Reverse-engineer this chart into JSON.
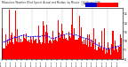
{
  "title": "Milwaukee Weather Wind Speed  Actual and Median  by Minute  (24 Hours) (Old)",
  "bar_color": "#ff0000",
  "line_color": "#0000ff",
  "background_color": "#ffffff",
  "plot_bg_color": "#ffffff",
  "ylim": [
    0,
    28
  ],
  "ytick_vals": [
    0,
    5,
    10,
    15,
    20,
    25
  ],
  "ytick_labels": [
    "0",
    "5",
    "10",
    "15",
    "20",
    "25"
  ],
  "n_points": 1440,
  "legend_actual_color": "#ff0000",
  "legend_median_color": "#0000cc",
  "seed": 42,
  "vgrid_every_hours": 3
}
